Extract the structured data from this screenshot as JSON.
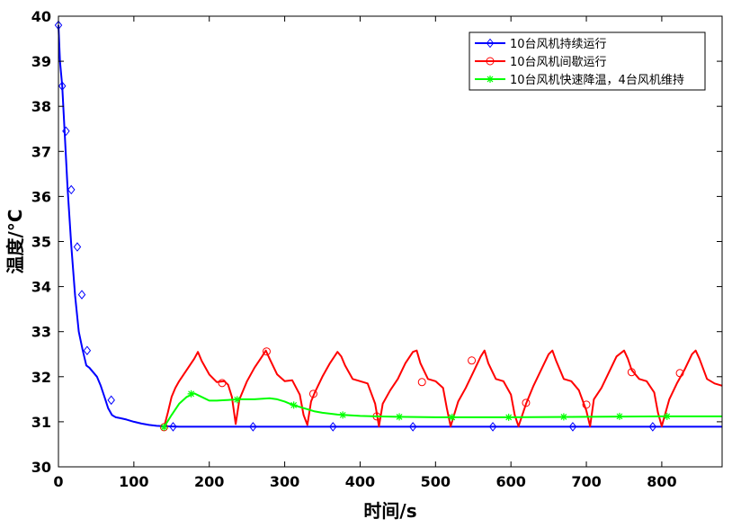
{
  "chart_data": {
    "type": "line",
    "title": "",
    "xlabel": "时间/s",
    "ylabel": "温度/°C",
    "xlim": [
      0,
      880
    ],
    "ylim": [
      30,
      40
    ],
    "xticks": [
      0,
      100,
      200,
      300,
      400,
      500,
      600,
      700,
      800
    ],
    "yticks": [
      30,
      31,
      32,
      33,
      34,
      35,
      36,
      37,
      38,
      39,
      40
    ],
    "grid": false,
    "legend_position": "top-right",
    "series": [
      {
        "name": "10台风机持续运行",
        "color": "#0000ff",
        "marker": "diamond",
        "x": [
          0,
          2,
          5,
          8,
          12,
          17,
          22,
          27,
          32,
          37,
          41,
          46,
          51,
          56,
          61,
          66,
          71,
          76,
          82,
          90,
          100,
          110,
          120,
          130,
          140,
          160,
          200,
          300,
          400,
          500,
          600,
          700,
          800,
          880
        ],
        "y": [
          39.8,
          39.0,
          38.45,
          37.5,
          36.2,
          34.9,
          33.8,
          33.0,
          32.6,
          32.25,
          32.2,
          32.1,
          32.0,
          31.8,
          31.55,
          31.3,
          31.15,
          31.1,
          31.08,
          31.05,
          31.0,
          30.96,
          30.93,
          30.91,
          30.9,
          30.89,
          30.89,
          30.89,
          30.89,
          30.89,
          30.89,
          30.89,
          30.89,
          30.89
        ],
        "markers_x": [
          0,
          5,
          10,
          17,
          25,
          31,
          38,
          70,
          152,
          258,
          364,
          470,
          576,
          682,
          788
        ],
        "markers_y": [
          39.8,
          38.45,
          37.45,
          36.15,
          34.88,
          33.82,
          32.58,
          31.48,
          30.89,
          30.89,
          30.89,
          30.89,
          30.89,
          30.89,
          30.89
        ]
      },
      {
        "name": "10台风机间歇运行",
        "color": "#ff0000",
        "marker": "circle",
        "x": [
          140,
          145,
          150,
          155,
          160,
          170,
          180,
          185,
          190,
          200,
          210,
          220,
          225,
          230,
          235,
          240,
          250,
          260,
          270,
          275,
          280,
          290,
          300,
          310,
          320,
          325,
          330,
          335,
          340,
          350,
          360,
          370,
          375,
          380,
          390,
          400,
          410,
          420,
          425,
          430,
          440,
          450,
          460,
          470,
          475,
          480,
          490,
          500,
          510,
          515,
          520,
          530,
          540,
          550,
          560,
          565,
          570,
          580,
          590,
          600,
          605,
          610,
          620,
          630,
          640,
          650,
          655,
          660,
          670,
          680,
          690,
          700,
          705,
          710,
          720,
          730,
          740,
          750,
          755,
          760,
          770,
          780,
          790,
          795,
          800,
          810,
          820,
          830,
          840,
          845,
          850,
          860,
          870,
          880
        ],
        "y": [
          30.88,
          31.2,
          31.55,
          31.75,
          31.9,
          32.15,
          32.4,
          32.55,
          32.35,
          32.05,
          31.88,
          31.9,
          31.82,
          31.55,
          30.95,
          31.5,
          31.9,
          32.2,
          32.45,
          32.58,
          32.4,
          32.05,
          31.9,
          31.92,
          31.6,
          31.15,
          30.93,
          31.45,
          31.65,
          32.0,
          32.3,
          32.55,
          32.45,
          32.25,
          31.95,
          31.9,
          31.85,
          31.4,
          30.9,
          31.4,
          31.7,
          31.95,
          32.3,
          32.55,
          32.58,
          32.3,
          31.95,
          31.9,
          31.75,
          31.3,
          30.9,
          31.45,
          31.75,
          32.1,
          32.45,
          32.58,
          32.3,
          31.95,
          31.9,
          31.6,
          31.15,
          30.9,
          31.4,
          31.8,
          32.15,
          32.5,
          32.58,
          32.35,
          31.95,
          31.9,
          31.7,
          31.25,
          30.9,
          31.5,
          31.75,
          32.1,
          32.45,
          32.58,
          32.4,
          32.15,
          31.95,
          31.9,
          31.65,
          31.2,
          30.9,
          31.5,
          31.85,
          32.15,
          32.5,
          32.58,
          32.4,
          31.95,
          31.85,
          31.8
        ],
        "markers_x": [
          140,
          217,
          276,
          338,
          422,
          482,
          548,
          620,
          700,
          760,
          824
        ],
        "markers_y": [
          30.88,
          31.86,
          32.56,
          31.62,
          31.12,
          31.88,
          32.36,
          31.42,
          31.38,
          32.1,
          32.08
        ]
      },
      {
        "name": "10台风机快速降温，4台风机维持",
        "color": "#00ff00",
        "marker": "asterisk",
        "x": [
          140,
          150,
          160,
          170,
          180,
          190,
          200,
          210,
          220,
          240,
          260,
          280,
          290,
          300,
          310,
          320,
          330,
          340,
          350,
          360,
          370,
          380,
          400,
          420,
          450,
          500,
          600,
          700,
          800,
          880
        ],
        "y": [
          30.88,
          31.15,
          31.4,
          31.55,
          31.63,
          31.55,
          31.47,
          31.47,
          31.48,
          31.5,
          31.5,
          31.52,
          31.5,
          31.45,
          31.38,
          31.33,
          31.28,
          31.23,
          31.2,
          31.18,
          31.16,
          31.15,
          31.13,
          31.12,
          31.11,
          31.1,
          31.1,
          31.11,
          31.12,
          31.12
        ],
        "markers_x": [
          140,
          176,
          237,
          312,
          377,
          452,
          522,
          597,
          670,
          744,
          807
        ],
        "markers_y": [
          30.88,
          31.62,
          31.49,
          31.37,
          31.15,
          31.11,
          31.1,
          31.1,
          31.11,
          31.12,
          31.12
        ]
      }
    ]
  }
}
